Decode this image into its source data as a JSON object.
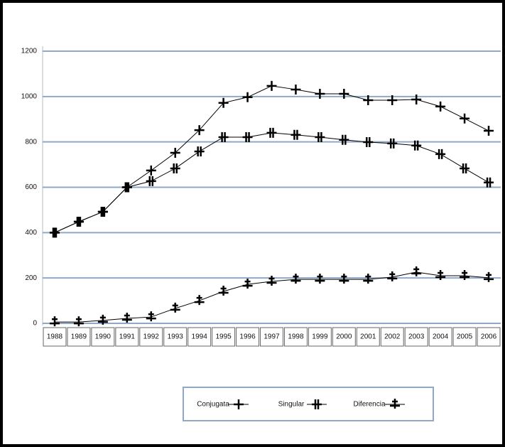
{
  "chart_data": {
    "type": "line",
    "categories": [
      "1988",
      "1989",
      "1990",
      "1991",
      "1992",
      "1993",
      "1994",
      "1995",
      "1996",
      "1997",
      "1998",
      "1999",
      "2000",
      "2001",
      "2002",
      "2003",
      "2004",
      "2005",
      "2006"
    ],
    "series": [
      {
        "name": "Conjugata",
        "color": "#000000",
        "values": [
          400,
          448,
          492,
          600,
          674,
          752,
          852,
          972,
          997,
          1047,
          1031,
          1012,
          1012,
          984,
          984,
          987,
          956,
          903,
          849
        ]
      },
      {
        "name": "Singular",
        "color": "#000000",
        "values": [
          400,
          448,
          492,
          600,
          627,
          683,
          758,
          821,
          821,
          840,
          831,
          821,
          809,
          799,
          793,
          784,
          746,
          683,
          621
        ]
      },
      {
        "name": "Diferencia",
        "color": "#000000",
        "values": [
          6,
          6,
          13,
          22,
          28,
          66,
          100,
          141,
          172,
          185,
          194,
          194,
          194,
          194,
          204,
          226,
          210,
          210,
          201
        ]
      }
    ],
    "ylim": [
      0,
      1200
    ],
    "yticks": [
      0,
      200,
      400,
      600,
      800,
      1000,
      1200
    ],
    "grid": true,
    "grid_color": "#8fa8c8"
  }
}
